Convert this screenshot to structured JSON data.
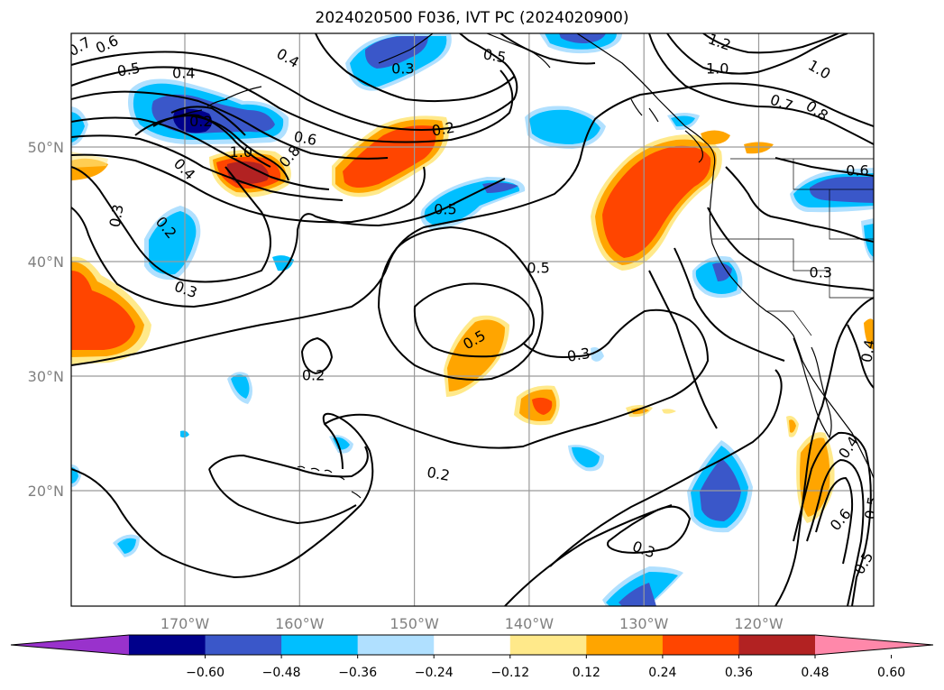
{
  "title": "2024020500 F036, IVT PC (2024020900)",
  "map": {
    "lon_ticks": [
      {
        "lon": -170,
        "label": "170°W"
      },
      {
        "lon": -160,
        "label": "160°W"
      },
      {
        "lon": -150,
        "label": "150°W"
      },
      {
        "lon": -140,
        "label": "140°W"
      },
      {
        "lon": -130,
        "label": "130°W"
      },
      {
        "lon": -120,
        "label": "120°W"
      }
    ],
    "lat_ticks": [
      {
        "lat": 50,
        "label": "50°N"
      },
      {
        "lat": 40,
        "label": "40°N"
      },
      {
        "lat": 30,
        "label": "30°N"
      },
      {
        "lat": 20,
        "label": "20°N"
      }
    ],
    "contour_labels": [
      {
        "text": "0.7",
        "lon": -179.2,
        "lat": 58.8,
        "rot": -30
      },
      {
        "text": "0.6",
        "lon": -176.8,
        "lat": 59.0,
        "rot": -25
      },
      {
        "text": "0.5",
        "lon": -174.9,
        "lat": 56.8,
        "rot": -10
      },
      {
        "text": "0.4",
        "lon": -170.1,
        "lat": 56.5,
        "rot": 0
      },
      {
        "text": "0.4",
        "lon": -161.0,
        "lat": 57.8,
        "rot": 30
      },
      {
        "text": "0.3",
        "lon": -151.0,
        "lat": 56.9,
        "rot": 0
      },
      {
        "text": "0.5",
        "lon": -143.0,
        "lat": 58.0,
        "rot": 10
      },
      {
        "text": "1.2",
        "lon": -123.4,
        "lat": 59.2,
        "rot": 20
      },
      {
        "text": "1.0",
        "lon": -123.6,
        "lat": 56.9,
        "rot": 0
      },
      {
        "text": "1.0",
        "lon": -114.7,
        "lat": 56.8,
        "rot": 30
      },
      {
        "text": "0.7",
        "lon": -118.0,
        "lat": 53.9,
        "rot": 20
      },
      {
        "text": "0.8",
        "lon": -114.9,
        "lat": 53.2,
        "rot": 35
      },
      {
        "text": "0.2",
        "lon": -168.6,
        "lat": 52.3,
        "rot": 0
      },
      {
        "text": "0.6",
        "lon": -159.5,
        "lat": 50.8,
        "rot": 10
      },
      {
        "text": "1.0",
        "lon": -165.1,
        "lat": 49.6,
        "rot": 0
      },
      {
        "text": "0.8",
        "lon": -160.9,
        "lat": 49.2,
        "rot": -50
      },
      {
        "text": "0.4",
        "lon": -170.0,
        "lat": 48.1,
        "rot": 45
      },
      {
        "text": "0.2",
        "lon": -147.5,
        "lat": 51.6,
        "rot": -10
      },
      {
        "text": "0.6",
        "lon": -111.4,
        "lat": 48.0,
        "rot": 0
      },
      {
        "text": "0.3",
        "lon": -176.0,
        "lat": 44.0,
        "rot": -80
      },
      {
        "text": "0.2",
        "lon": -171.6,
        "lat": 43.0,
        "rot": 50
      },
      {
        "text": "0.5",
        "lon": -147.3,
        "lat": 44.6,
        "rot": 0
      },
      {
        "text": "0.5",
        "lon": -139.2,
        "lat": 39.5,
        "rot": 0
      },
      {
        "text": "0.3",
        "lon": -169.9,
        "lat": 37.6,
        "rot": 20
      },
      {
        "text": "0.3",
        "lon": -114.6,
        "lat": 39.1,
        "rot": 0
      },
      {
        "text": "0.5",
        "lon": -144.8,
        "lat": 33.2,
        "rot": -30
      },
      {
        "text": "0.3",
        "lon": -135.7,
        "lat": 31.9,
        "rot": -10
      },
      {
        "text": "0.2",
        "lon": -158.8,
        "lat": 30.1,
        "rot": 0
      },
      {
        "text": "0.4",
        "lon": -110.5,
        "lat": 32.2,
        "rot": -80
      },
      {
        "text": "0.2",
        "lon": -147.9,
        "lat": 21.5,
        "rot": 10
      },
      {
        "text": "0.4",
        "lon": -112.2,
        "lat": 23.8,
        "rot": -55
      },
      {
        "text": "0.6",
        "lon": -112.9,
        "lat": 17.5,
        "rot": -50
      },
      {
        "text": "0.5",
        "lon": -110.2,
        "lat": 18.5,
        "rot": -80
      },
      {
        "text": "0.5",
        "lon": -110.9,
        "lat": 13.7,
        "rot": -60
      },
      {
        "text": "0.3",
        "lon": -130.0,
        "lat": 14.9,
        "rot": 20
      }
    ]
  },
  "colorbar": {
    "colors": [
      "#9932cc",
      "#00008b",
      "#3a57c9",
      "#00bfff",
      "#b0e0ff",
      "#ffffff",
      "#ffe98a",
      "#ffa500",
      "#ff4500",
      "#b22222",
      "#ff88aa"
    ],
    "ticks": [
      "−0.60",
      "−0.48",
      "−0.36",
      "−0.24",
      "−0.12",
      "0.12",
      "0.24",
      "0.36",
      "0.48",
      "0.60"
    ]
  }
}
